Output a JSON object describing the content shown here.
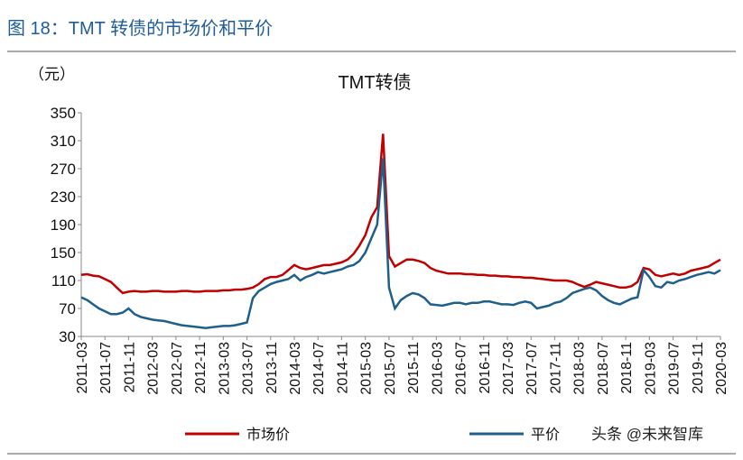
{
  "header": {
    "title": "图 18：TMT 转债的市场价和平价"
  },
  "watermark": "头条 @未来智库",
  "chart_data": {
    "type": "line",
    "title": "TMT转债",
    "y_label": "（元）",
    "categories": [
      "2011-03",
      null,
      null,
      null,
      "2011-07",
      null,
      null,
      null,
      "2011-11",
      null,
      null,
      null,
      "2012-03",
      null,
      null,
      null,
      "2012-07",
      null,
      null,
      null,
      "2012-11",
      null,
      null,
      null,
      "2013-03",
      null,
      null,
      null,
      "2013-07",
      null,
      null,
      null,
      "2013-11",
      null,
      null,
      null,
      "2014-03",
      null,
      null,
      null,
      "2014-07",
      null,
      null,
      null,
      "2014-11",
      null,
      null,
      null,
      "2015-03",
      null,
      null,
      null,
      "2015-07",
      null,
      null,
      null,
      "2015-11",
      null,
      null,
      null,
      "2016-03",
      null,
      null,
      null,
      "2016-07",
      null,
      null,
      null,
      "2016-11",
      null,
      null,
      null,
      "2017-03",
      null,
      null,
      null,
      "2017-07",
      null,
      null,
      null,
      "2017-11",
      null,
      null,
      null,
      "2018-03",
      null,
      null,
      null,
      "2018-07",
      null,
      null,
      null,
      "2018-11",
      null,
      null,
      null,
      "2019-03",
      null,
      null,
      null,
      "2019-07",
      null,
      null,
      null,
      "2019-11",
      null,
      null,
      null,
      "2020-03"
    ],
    "series": [
      {
        "name": "市场价",
        "color": "#c00000",
        "values": [
          118,
          119,
          117,
          116,
          112,
          108,
          100,
          92,
          94,
          95,
          94,
          94,
          95,
          95,
          94,
          94,
          94,
          95,
          95,
          94,
          94,
          95,
          95,
          95,
          96,
          96,
          97,
          97,
          98,
          100,
          105,
          112,
          115,
          115,
          118,
          125,
          132,
          128,
          126,
          128,
          130,
          132,
          132,
          134,
          136,
          140,
          148,
          160,
          175,
          200,
          215,
          320,
          145,
          130,
          135,
          140,
          140,
          138,
          135,
          128,
          124,
          122,
          120,
          120,
          120,
          119,
          119,
          118,
          118,
          117,
          117,
          116,
          116,
          115,
          115,
          114,
          114,
          113,
          112,
          111,
          110,
          110,
          110,
          108,
          104,
          101,
          104,
          108,
          106,
          104,
          102,
          100,
          100,
          102,
          108,
          128,
          126,
          118,
          116,
          118,
          120,
          118,
          120,
          124,
          126,
          128,
          130,
          135,
          140
        ]
      },
      {
        "name": "平价",
        "color": "#1f5f8b",
        "values": [
          86,
          82,
          76,
          70,
          66,
          62,
          62,
          64,
          70,
          62,
          58,
          56,
          54,
          53,
          52,
          50,
          48,
          46,
          45,
          44,
          43,
          42,
          43,
          44,
          45,
          45,
          46,
          48,
          50,
          85,
          95,
          100,
          105,
          108,
          110,
          112,
          118,
          110,
          115,
          118,
          122,
          120,
          122,
          124,
          126,
          130,
          132,
          138,
          150,
          170,
          190,
          285,
          100,
          70,
          82,
          88,
          92,
          90,
          85,
          76,
          75,
          74,
          76,
          78,
          78,
          76,
          78,
          78,
          80,
          80,
          78,
          76,
          76,
          75,
          78,
          80,
          78,
          70,
          72,
          74,
          78,
          80,
          85,
          92,
          95,
          98,
          100,
          96,
          88,
          82,
          78,
          76,
          80,
          84,
          86,
          125,
          115,
          102,
          100,
          108,
          106,
          110,
          112,
          115,
          118,
          120,
          122,
          120,
          125
        ]
      }
    ],
    "ylim": [
      30,
      350
    ],
    "yticks": [
      30,
      70,
      110,
      150,
      190,
      230,
      270,
      310,
      350
    ]
  }
}
